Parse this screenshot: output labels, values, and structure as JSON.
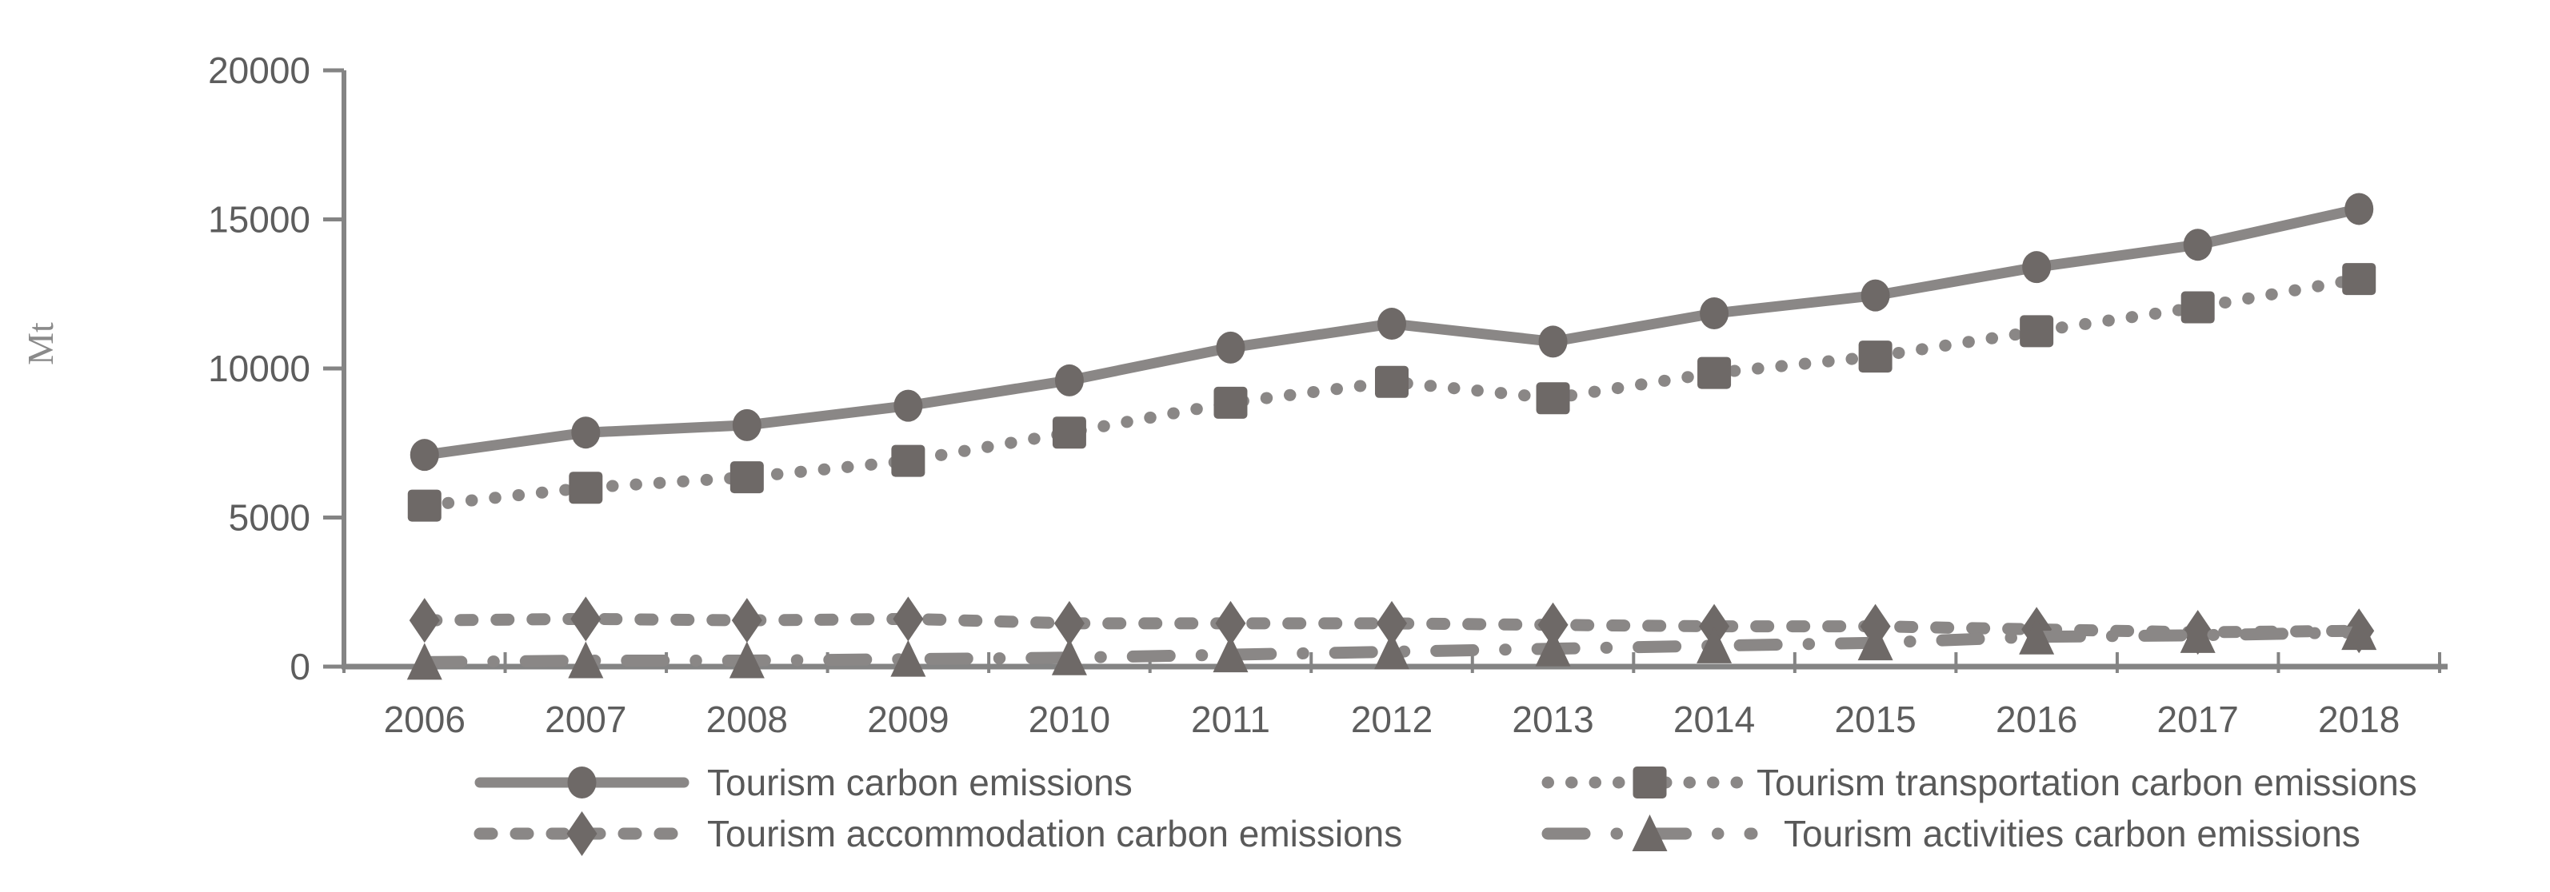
{
  "chart_data": {
    "type": "line",
    "title": "",
    "ylabel": "Mt",
    "xlabel": "",
    "grid": false,
    "legend_position": "bottom",
    "ylim": [
      0,
      20000
    ],
    "yticks": [
      0,
      5000,
      10000,
      15000,
      20000
    ],
    "categories": [
      "2006",
      "2007",
      "2008",
      "2009",
      "2010",
      "2011",
      "2012",
      "2013",
      "2014",
      "2015",
      "2016",
      "2017",
      "2018"
    ],
    "series": [
      {
        "name": "Tourism carbon emissions",
        "marker": "circle",
        "line": "solid",
        "values": [
          7100,
          7850,
          8100,
          8750,
          9600,
          10700,
          11500,
          10900,
          11850,
          12450,
          13400,
          14150,
          15350
        ]
      },
      {
        "name": "Tourism transportation carbon emissions",
        "marker": "square",
        "line": "dotted",
        "values": [
          5400,
          6000,
          6350,
          6900,
          7850,
          8850,
          9550,
          9000,
          9850,
          10400,
          11250,
          12050,
          13000
        ]
      },
      {
        "name": "Tourism accommodation carbon emissions",
        "marker": "diamond",
        "line": "dashed",
        "values": [
          1550,
          1600,
          1550,
          1600,
          1450,
          1450,
          1450,
          1400,
          1350,
          1350,
          1250,
          1150,
          1200
        ]
      },
      {
        "name": "Tourism activities carbon emissions",
        "marker": "triangle",
        "line": "dashdot",
        "values": [
          150,
          200,
          200,
          250,
          300,
          400,
          500,
          600,
          700,
          800,
          1000,
          1050,
          1150
        ]
      }
    ],
    "colors": {
      "line": "#8a8786",
      "marker": "#6e6967",
      "axis": "#848484",
      "text": "#5d5d5d",
      "unit_text": "#8a8a8a"
    }
  }
}
